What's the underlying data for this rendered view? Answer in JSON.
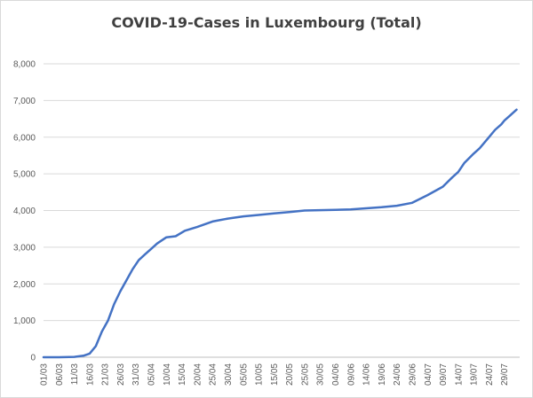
{
  "chart_data": {
    "type": "line",
    "title": "COVID-19-Cases in Luxembourg (Total)",
    "xlabel": "",
    "ylabel": "",
    "ylim": [
      0,
      8000
    ],
    "y_ticks": [
      "0",
      "1,000",
      "2,000",
      "3,000",
      "4,000",
      "5,000",
      "6,000",
      "7,000",
      "8,000"
    ],
    "x_tick_labels": [
      "01/03",
      "06/03",
      "11/03",
      "16/03",
      "21/03",
      "26/03",
      "31/03",
      "05/04",
      "10/04",
      "15/04",
      "20/04",
      "25/04",
      "30/04",
      "05/05",
      "10/05",
      "15/05",
      "20/05",
      "25/05",
      "30/05",
      "04/06",
      "09/06",
      "14/06",
      "19/06",
      "24/06",
      "29/06",
      "04/07",
      "09/07",
      "14/07",
      "19/07",
      "24/07",
      "29/07"
    ],
    "grid": true,
    "legend": "none",
    "line_color": "#4472C4",
    "series": [
      {
        "x": [
          "01/03",
          "06/03",
          "11/03",
          "14/03",
          "16/03",
          "18/03",
          "20/03",
          "22/03",
          "24/03",
          "26/03",
          "28/03",
          "30/03",
          "01/04",
          "03/04",
          "05/04",
          "07/04",
          "10/04",
          "13/04",
          "16/04",
          "20/04",
          "25/04",
          "30/04",
          "05/05",
          "10/05",
          "15/05",
          "20/05",
          "25/05",
          "30/05",
          "04/06",
          "09/06",
          "14/06",
          "19/06",
          "24/06",
          "29/06",
          "04/07",
          "09/07",
          "12/07",
          "14/07",
          "16/07",
          "19/07",
          "21/07",
          "24/07",
          "26/07",
          "28/07",
          "29/07",
          "31/07",
          "02/08"
        ],
        "values": [
          0,
          0,
          10,
          40,
          100,
          300,
          700,
          1000,
          1450,
          1800,
          2100,
          2400,
          2650,
          2800,
          2950,
          3100,
          3270,
          3300,
          3450,
          3550,
          3700,
          3780,
          3840,
          3880,
          3920,
          3960,
          4000,
          4010,
          4020,
          4030,
          4060,
          4090,
          4130,
          4210,
          4420,
          4650,
          4900,
          5050,
          5300,
          5550,
          5700,
          6000,
          6200,
          6350,
          6450,
          6600,
          6750
        ]
      }
    ]
  }
}
